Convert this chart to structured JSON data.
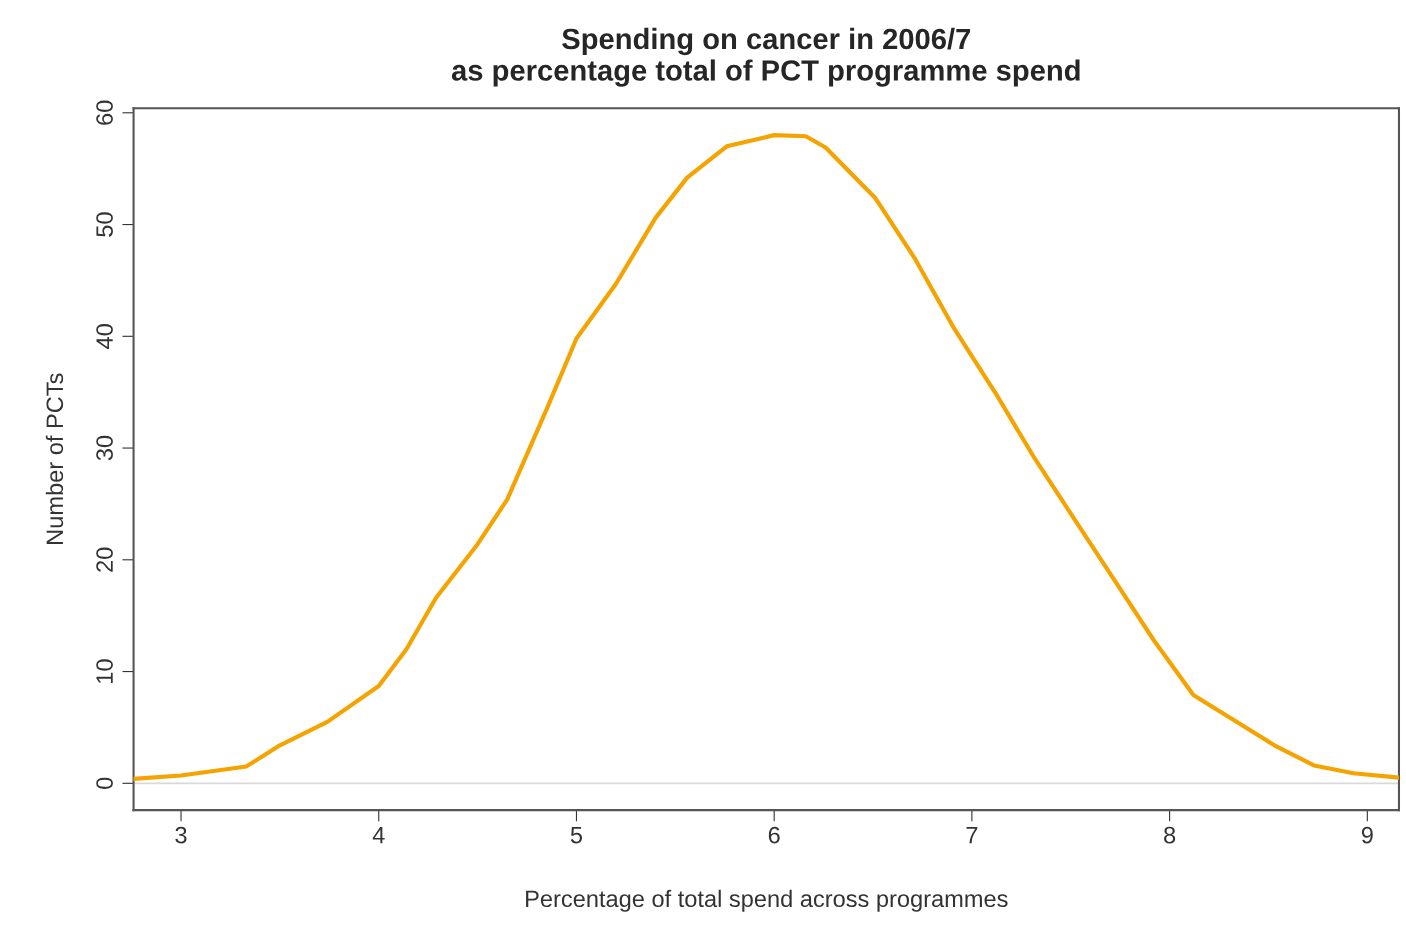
{
  "chart_data": {
    "type": "line",
    "title": "Spending on cancer in 2006/7\nas percentage total of PCT programme spend",
    "xlabel": "Percentage of total spend across programmes",
    "ylabel": "Number of PCTs",
    "series": [
      {
        "color": "#f5a300",
        "x": [
          2.76,
          3.0,
          3.33,
          3.5,
          3.74,
          4.0,
          4.14,
          4.29,
          4.5,
          4.65,
          4.85,
          5.0,
          5.2,
          5.4,
          5.56,
          5.76,
          6.0,
          6.16,
          6.26,
          6.51,
          6.71,
          6.91,
          7.12,
          7.32,
          7.52,
          7.72,
          7.92,
          8.12,
          8.32,
          8.53,
          8.73,
          8.93,
          9.16
        ],
        "values": [
          0.4,
          0.7,
          1.5,
          3.4,
          5.5,
          8.7,
          12,
          16.6,
          21.4,
          25.4,
          33.5,
          39.8,
          44.7,
          50.6,
          54.2,
          57,
          58,
          57.9,
          56.9,
          52.4,
          47,
          40.7,
          34.9,
          29,
          23.6,
          18.2,
          12.8,
          7.9,
          5.7,
          3.4,
          1.6,
          0.9,
          0.5
        ]
      }
    ],
    "ref_lines": [
      {
        "axis": "y",
        "value": 0,
        "color": "#d9d9d9"
      }
    ],
    "xlim": [
      2.76,
      9.16
    ],
    "ylim": [
      -2.4,
      60.4
    ],
    "xticks": [
      3,
      4,
      5,
      6,
      7,
      8,
      9
    ],
    "yticks": [
      0,
      10,
      20,
      30,
      40,
      50,
      60
    ],
    "grid": false,
    "legend": false,
    "marker": "none",
    "line_style": "solid"
  }
}
